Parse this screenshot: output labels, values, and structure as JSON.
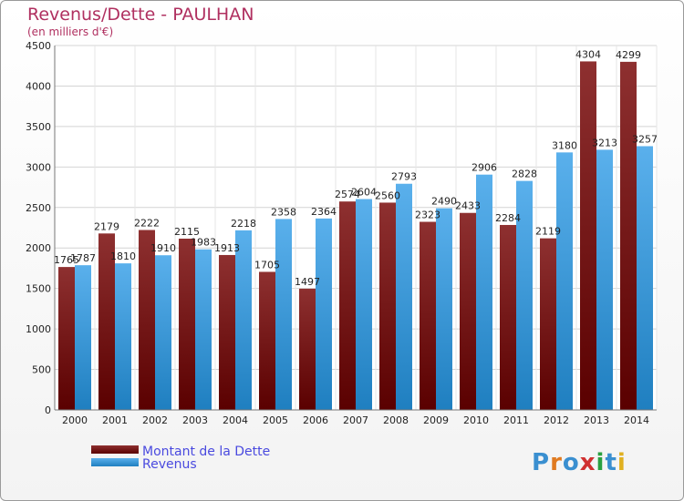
{
  "title": "Revenus/Dette - PAULHAN",
  "subtitle": "(en milliers d'€)",
  "logo": "Proxiti",
  "colors": {
    "dette": "#7d1c1c",
    "revenus": "#3399dd",
    "title": "#b03060"
  },
  "chart_data": {
    "type": "bar",
    "title": "Revenus/Dette - PAULHAN",
    "ylabel": "(en milliers d'€)",
    "xlabel": "",
    "categories": [
      "2000",
      "2001",
      "2002",
      "2003",
      "2004",
      "2005",
      "2006",
      "2007",
      "2008",
      "2009",
      "2010",
      "2011",
      "2012",
      "2013",
      "2014"
    ],
    "ylim": [
      0,
      4500
    ],
    "yticks": [
      0,
      500,
      1000,
      1500,
      2000,
      2500,
      3000,
      3500,
      4000,
      4500
    ],
    "grid": true,
    "legend_position": "bottom-left",
    "series": [
      {
        "name": "Montant de la Dette",
        "values": [
          1765,
          2179,
          2222,
          2115,
          1913,
          1705,
          1497,
          2574,
          2560,
          2323,
          2433,
          2284,
          2119,
          4304,
          4299
        ],
        "labels": [
          "1765",
          "2179",
          "2222",
          "2115",
          "1913",
          "1705",
          "1497",
          "2574",
          "2560",
          "2323",
          "2433",
          "2284",
          "2119",
          "4304",
          "4299"
        ]
      },
      {
        "name": "Revenus",
        "values": [
          1787,
          1810,
          1910,
          1983,
          2218,
          2358,
          2364,
          2604,
          2793,
          2490,
          2906,
          2828,
          3180,
          3213,
          3257
        ],
        "labels": [
          "1787",
          "1810",
          "1910",
          "1983",
          "2218",
          "2358",
          "2364",
          "2604",
          "2793",
          "2490",
          "2906",
          "2828",
          "3180",
          "3213",
          "3257"
        ]
      }
    ]
  }
}
